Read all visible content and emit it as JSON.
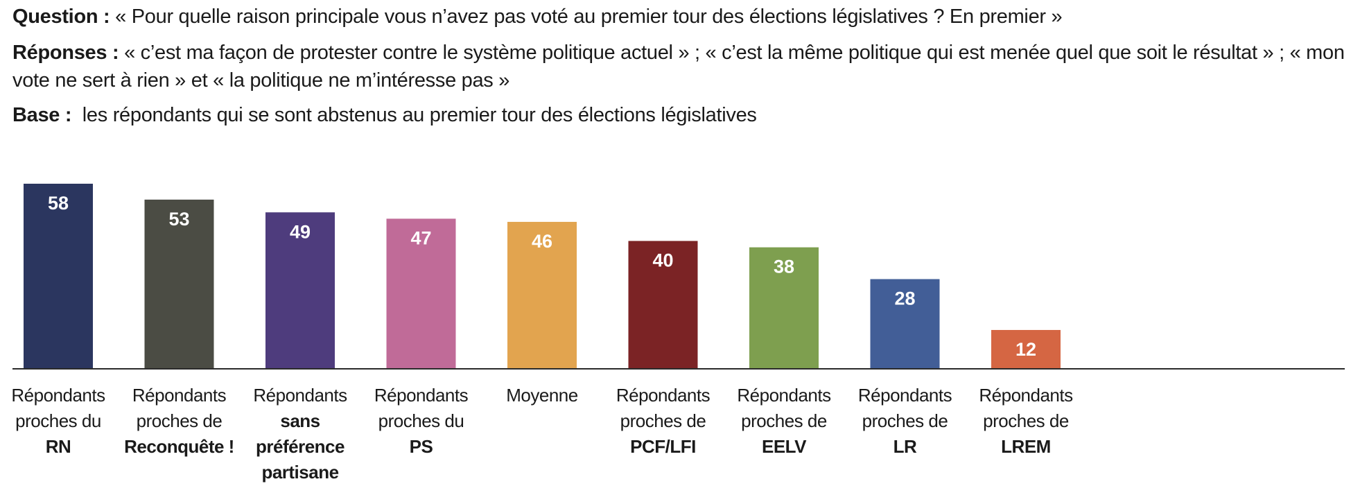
{
  "header": {
    "question_label": "Question :",
    "question_text": "« Pour quelle raison principale vous n’avez pas voté au premier tour des élections législatives ? En premier »",
    "responses_label": "Réponses :",
    "responses_text": "« c’est ma façon de protester contre le système politique actuel » ; « c’est la même politique qui est menée quel que soit le résultat » ; « mon vote ne sert à rien » et « la politique ne m’intéresse pas »",
    "base_label": "Base :",
    "base_text": "les répondants qui se sont abstenus au premier tour des élections législatives"
  },
  "chart_data": {
    "type": "bar",
    "title": "",
    "xlabel": "",
    "ylabel": "",
    "ylim": [
      0,
      58
    ],
    "grid": false,
    "categories": [
      {
        "line1": "Répondants",
        "line2": "proches du",
        "bold": "RN"
      },
      {
        "line1": "Répondants",
        "line2": "proches de",
        "bold": "Reconquête !"
      },
      {
        "line1": "Répondants",
        "line2": "",
        "bold": "sans préférence partisane"
      },
      {
        "line1": "Répondants",
        "line2": "proches du",
        "bold": "PS"
      },
      {
        "line1": "Moyenne",
        "line2": "",
        "bold": ""
      },
      {
        "line1": "Répondants",
        "line2": "proches de",
        "bold": "PCF/LFI"
      },
      {
        "line1": "Répondants",
        "line2": "proches de",
        "bold": "EELV"
      },
      {
        "line1": "Répondants",
        "line2": "proches de",
        "bold": "LR"
      },
      {
        "line1": "Répondants",
        "line2": "proches de",
        "bold": "LREM"
      }
    ],
    "values": [
      58,
      53,
      49,
      47,
      46,
      40,
      38,
      28,
      12
    ],
    "colors": [
      "#2b365f",
      "#4b4c44",
      "#4e3c7d",
      "#c06b98",
      "#e2a44f",
      "#7b2325",
      "#7e9f4f",
      "#425e97",
      "#d56643"
    ],
    "label_color": "#ffffff",
    "axis_color": "#2a2a2a"
  }
}
